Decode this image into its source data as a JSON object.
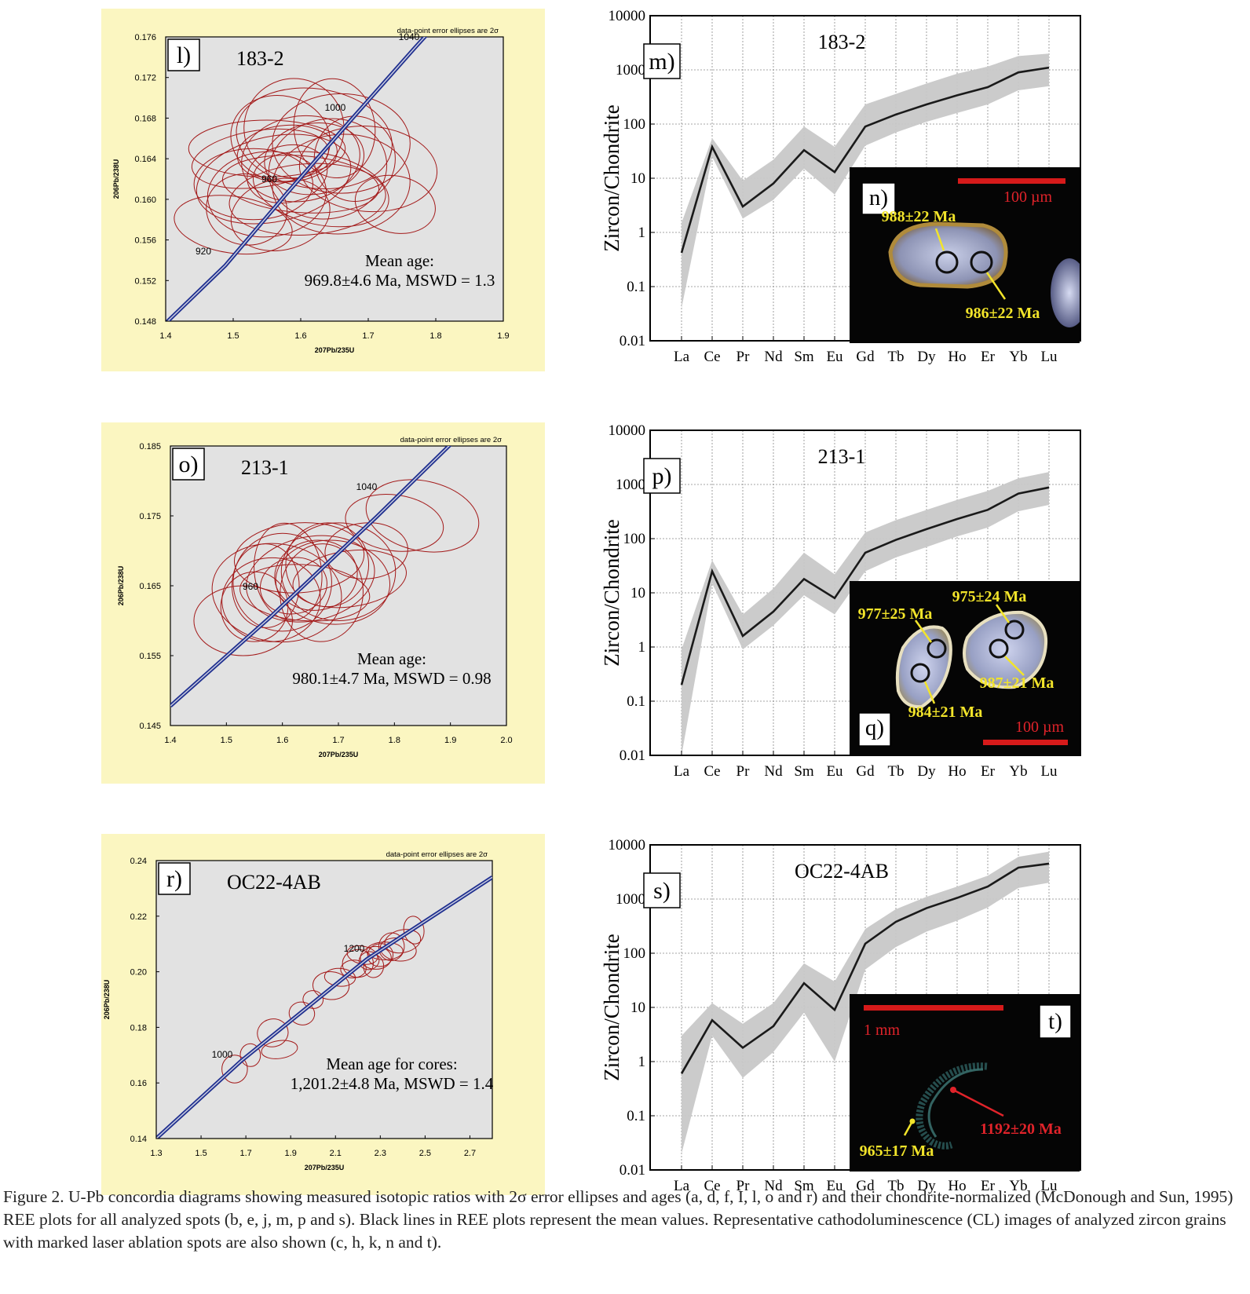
{
  "figure": {
    "caption": "Figure 2. U-Pb concordia diagrams showing measured isotopic ratios with 2σ error ellipses and ages (a, d, f, I, l, o and r) and their chondrite-normalized (McDonough and Sun, 1995) REE plots for all analyzed spots (b, e, j, m, p and s). Black lines in REE plots represent the mean values. Representative cathodoluminescence (CL) images of analyzed zircon grains with marked laser ablation spots are also shown (c, h, k, n and t)."
  },
  "chart_data": [
    {
      "type": "scatter",
      "subtype": "concordia",
      "panel_label": "l)",
      "sample": "183-2",
      "note": "data-point error ellipses are 2σ",
      "xlabel": "207Pb/235U",
      "ylabel": "206Pb/238U",
      "xlim": [
        1.4,
        1.9
      ],
      "ylim": [
        0.148,
        0.176
      ],
      "xticks": [
        1.4,
        1.5,
        1.6,
        1.7,
        1.8,
        1.9
      ],
      "yticks": [
        0.148,
        0.152,
        0.156,
        0.16,
        0.164,
        0.168,
        0.172,
        0.176
      ],
      "concordia_ages": [
        "920",
        "960",
        "1000",
        "1040"
      ],
      "concordia_points": [
        [
          1.4,
          0.1478
        ],
        [
          1.4886,
          0.1535
        ],
        [
          1.5795,
          0.1606
        ],
        [
          1.6728,
          0.1677
        ],
        [
          1.7686,
          0.1749
        ],
        [
          1.8,
          0.1772
        ]
      ],
      "mean_age_label": "Mean age:",
      "mean_age": "969.8±4.6 Ma, MSWD = 1.3",
      "ellipse_centers": [
        [
          1.58,
          0.1625
        ],
        [
          1.62,
          0.164
        ],
        [
          1.55,
          0.1605
        ],
        [
          1.66,
          0.1655
        ],
        [
          1.6,
          0.1615
        ],
        [
          1.52,
          0.159
        ],
        [
          1.57,
          0.166
        ],
        [
          1.64,
          0.163
        ],
        [
          1.54,
          0.164
        ],
        [
          1.61,
          0.16
        ],
        [
          1.68,
          0.164
        ],
        [
          1.59,
          0.167
        ],
        [
          1.5,
          0.1575
        ],
        [
          1.63,
          0.161
        ],
        [
          1.56,
          0.162
        ],
        [
          1.65,
          0.167
        ],
        [
          1.58,
          0.1645
        ],
        [
          1.53,
          0.1615
        ],
        [
          1.7,
          0.163
        ],
        [
          1.62,
          0.166
        ],
        [
          1.74,
          0.1595
        ],
        [
          1.57,
          0.1585
        ],
        [
          1.6,
          0.164
        ],
        [
          1.66,
          0.1615
        ],
        [
          1.55,
          0.165
        ]
      ]
    },
    {
      "type": "line",
      "subtype": "ree-spider",
      "panel_label": "m)",
      "sample": "183-2",
      "categories": [
        "La",
        "Ce",
        "Pr",
        "Nd",
        "Sm",
        "Eu",
        "Gd",
        "Tb",
        "Dy",
        "Ho",
        "Er",
        "Yb",
        "Lu"
      ],
      "ylabel": "Zircon/Chondrite",
      "yscale": "log",
      "ylim": [
        0.01,
        10000
      ],
      "yticks": [
        "0.01",
        "0.1",
        "1",
        "10",
        "100",
        "1000",
        "10000"
      ],
      "mean": [
        0.42,
        38,
        3,
        8,
        33,
        13,
        90,
        150,
        230,
        340,
        480,
        900,
        1100
      ],
      "band_low": [
        0.04,
        25,
        1.8,
        4,
        15,
        5,
        40,
        70,
        110,
        160,
        230,
        420,
        500
      ],
      "band_high": [
        1.5,
        55,
        9,
        22,
        90,
        38,
        230,
        360,
        560,
        850,
        1150,
        1800,
        2000
      ]
    },
    {
      "type": "scatter",
      "subtype": "concordia",
      "panel_label": "o)",
      "sample": "213-1",
      "note": "data-point error ellipses are 2σ",
      "xlabel": "207Pb/235U",
      "ylabel": "206Pb/238U",
      "xlim": [
        1.4,
        2.0
      ],
      "ylim": [
        0.145,
        0.185
      ],
      "xticks": [
        1.4,
        1.5,
        1.6,
        1.7,
        1.8,
        1.9,
        2.0
      ],
      "yticks": [
        0.145,
        0.155,
        0.165,
        0.175,
        0.185
      ],
      "concordia_ages": [
        "960",
        "1040"
      ],
      "concordia_points": [
        [
          1.4,
          0.1478
        ],
        [
          1.5795,
          0.1606
        ],
        [
          1.7686,
          0.1749
        ],
        [
          1.91,
          0.186
        ]
      ],
      "mean_age_label": "Mean age:",
      "mean_age": "980.1±4.7 Ma, MSWD = 0.98",
      "ellipse_centers": [
        [
          1.62,
          0.165
        ],
        [
          1.66,
          0.1665
        ],
        [
          1.58,
          0.163
        ],
        [
          1.7,
          0.167
        ],
        [
          1.64,
          0.164
        ],
        [
          1.55,
          0.162
        ],
        [
          1.68,
          0.168
        ],
        [
          1.6,
          0.1655
        ],
        [
          1.72,
          0.166
        ],
        [
          1.63,
          0.169
        ],
        [
          1.57,
          0.165
        ],
        [
          1.67,
          0.164
        ],
        [
          1.8,
          0.174
        ],
        [
          1.85,
          0.175
        ],
        [
          1.65,
          0.166
        ],
        [
          1.61,
          0.167
        ],
        [
          1.75,
          0.17
        ],
        [
          1.53,
          0.16
        ],
        [
          1.69,
          0.1655
        ],
        [
          1.59,
          0.164
        ]
      ]
    },
    {
      "type": "line",
      "subtype": "ree-spider",
      "panel_label": "p)",
      "sample": "213-1",
      "categories": [
        "La",
        "Ce",
        "Pr",
        "Nd",
        "Sm",
        "Eu",
        "Gd",
        "Tb",
        "Dy",
        "Ho",
        "Er",
        "Yb",
        "Lu"
      ],
      "ylabel": "Zircon/Chondrite",
      "yscale": "log",
      "ylim": [
        0.01,
        10000
      ],
      "yticks": [
        "0.01",
        "0.1",
        "1",
        "10",
        "100",
        "1000",
        "10000"
      ],
      "mean": [
        0.2,
        25,
        1.6,
        4.5,
        18,
        8,
        55,
        95,
        150,
        230,
        340,
        680,
        880
      ],
      "band_low": [
        0.01,
        15,
        0.9,
        2.5,
        9,
        4,
        25,
        45,
        70,
        110,
        160,
        320,
        420
      ],
      "band_high": [
        0.9,
        40,
        4,
        12,
        55,
        22,
        130,
        220,
        340,
        520,
        760,
        1300,
        1700
      ]
    },
    {
      "type": "scatter",
      "subtype": "concordia",
      "panel_label": "r)",
      "sample": "OC22-4AB",
      "note": "data-point error ellipses are 2σ",
      "xlabel": "207Pb/235U",
      "ylabel": "206Pb/238U",
      "xlim": [
        1.3,
        2.8
      ],
      "ylim": [
        0.14,
        0.24
      ],
      "xticks": [
        1.3,
        1.5,
        1.7,
        1.9,
        2.1,
        2.3,
        2.5,
        2.7
      ],
      "yticks": [
        0.14,
        0.16,
        0.18,
        0.2,
        0.22,
        0.24
      ],
      "concordia_ages": [
        "1000",
        "1200"
      ],
      "concordia_points": [
        [
          1.3,
          0.14
        ],
        [
          1.68,
          0.168
        ],
        [
          2.24,
          0.2045
        ],
        [
          2.8,
          0.234
        ]
      ],
      "mean_age_label": "Mean age for cores:",
      "mean_age": "1,201.2±4.8 Ma, MSWD = 1.4",
      "ellipse_centers": [
        [
          2.25,
          0.204
        ],
        [
          2.3,
          0.206
        ],
        [
          2.2,
          0.203
        ],
        [
          2.32,
          0.2075
        ],
        [
          2.27,
          0.202
        ],
        [
          2.35,
          0.209
        ],
        [
          2.22,
          0.206
        ],
        [
          2.4,
          0.211
        ],
        [
          2.45,
          0.215
        ],
        [
          2.18,
          0.201
        ],
        [
          2.28,
          0.205
        ],
        [
          2.08,
          0.195
        ],
        [
          2.0,
          0.19
        ],
        [
          1.95,
          0.185
        ],
        [
          1.82,
          0.178
        ],
        [
          1.85,
          0.172
        ],
        [
          1.72,
          0.17
        ],
        [
          1.65,
          0.165
        ],
        [
          2.12,
          0.198
        ],
        [
          2.38,
          0.208
        ]
      ]
    },
    {
      "type": "line",
      "subtype": "ree-spider",
      "panel_label": "s)",
      "sample": "OC22-4AB",
      "categories": [
        "La",
        "Ce",
        "Pr",
        "Nd",
        "Sm",
        "Eu",
        "Gd",
        "Tb",
        "Dy",
        "Ho",
        "Er",
        "Yb",
        "Lu"
      ],
      "ylabel": "Zircon/Chondrite",
      "yscale": "log",
      "ylim": [
        0.01,
        10000
      ],
      "yticks": [
        "0.01",
        "0.1",
        "1",
        "10",
        "100",
        "1000",
        "10000"
      ],
      "mean": [
        0.6,
        5.8,
        1.8,
        4.5,
        28,
        9,
        150,
        380,
        680,
        1050,
        1700,
        3800,
        4500
      ],
      "band_low": [
        0.02,
        3,
        0.5,
        1.5,
        8,
        1,
        50,
        130,
        250,
        400,
        700,
        1600,
        2000
      ],
      "band_high": [
        3,
        12,
        5,
        12,
        65,
        30,
        280,
        650,
        1100,
        1700,
        2700,
        6000,
        7500
      ]
    }
  ],
  "cl_images": [
    {
      "panel_label": "n)",
      "scale": "100 µm",
      "ages": [
        "988±22 Ma",
        "986±22 Ma"
      ]
    },
    {
      "panel_label": "q)",
      "scale": "100 µm",
      "ages": [
        "975±24 Ma",
        "977±25 Ma",
        "987±21 Ma",
        "984±21 Ma"
      ]
    },
    {
      "panel_label": "t)",
      "scale": "1 mm",
      "ages": [
        "965±17 Ma",
        "1192±20 Ma"
      ]
    }
  ],
  "colors": {
    "concordia_bg": "#fbf6c1",
    "plot_bg": "#e2e2e2",
    "ellipse": "#a31a1a",
    "concordia_line": "#1f2f8f",
    "ree_band": "#c8c8c8",
    "ree_line": "#1a1a1a",
    "age_yellow": "#f2e42a",
    "age_red": "#e0232a",
    "scale_red": "#d61a1a"
  }
}
